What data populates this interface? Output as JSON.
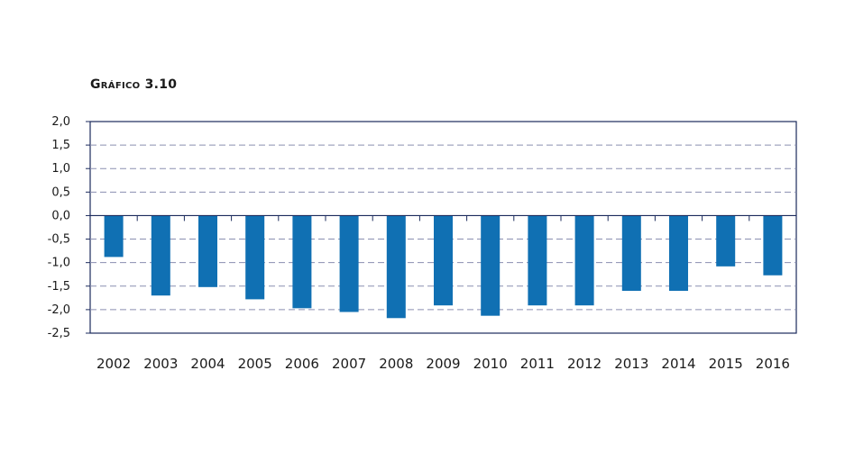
{
  "chart_data": {
    "type": "bar",
    "title": "Gráfico 3.10",
    "xlabel": "",
    "ylabel": "",
    "categories": [
      "2002",
      "2003",
      "2004",
      "2005",
      "2006",
      "2007",
      "2008",
      "2009",
      "2010",
      "2011",
      "2012",
      "2013",
      "2014",
      "2015",
      "2016"
    ],
    "values": [
      -0.88,
      -1.7,
      -1.52,
      -1.78,
      -1.97,
      -2.05,
      -2.18,
      -1.91,
      -2.13,
      -1.91,
      -1.91,
      -1.6,
      -1.6,
      -1.08,
      -1.27
    ],
    "ylim": [
      -2.5,
      2.0
    ],
    "yticks": [
      2.0,
      1.5,
      1.0,
      0.5,
      0.0,
      -0.5,
      -1.0,
      -1.5,
      -2.0,
      -2.5
    ],
    "ytick_labels": [
      "2,0",
      "1,5",
      "1,0",
      "0,5",
      "0,0",
      "-0,5",
      "-1,0",
      "-1,5",
      "-2,0",
      "-2,5"
    ],
    "bar_color": "#1070b3",
    "grid_color": "#8a8fb0",
    "axis_color": "#1b2a5c",
    "grid": true,
    "legend": "none"
  }
}
